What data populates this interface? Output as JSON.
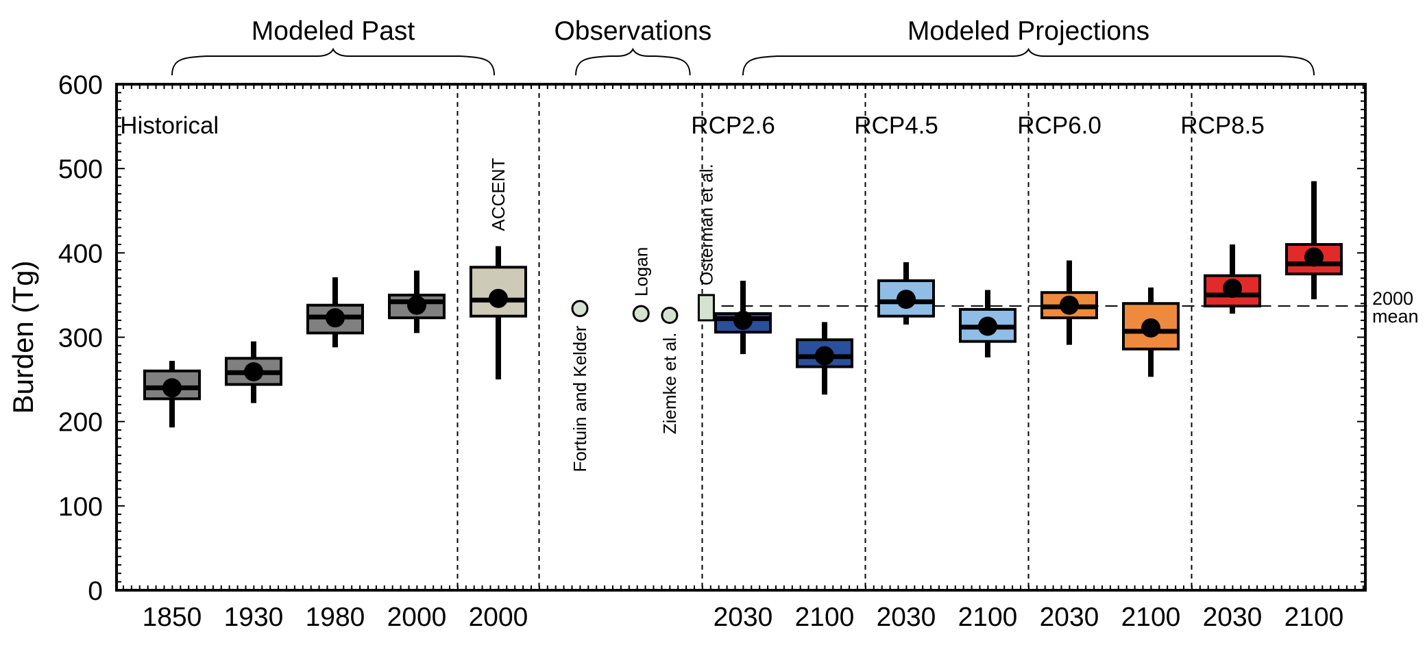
{
  "chart_data": {
    "type": "box",
    "ylabel": "Burden (Tg)",
    "ylim": [
      0,
      600
    ],
    "yticks": [
      0,
      100,
      200,
      300,
      400,
      500,
      600
    ],
    "grid": false,
    "brackets": [
      {
        "label": "Modeled Past",
        "x_from": 1,
        "x_to": 4.95
      },
      {
        "label": "Observations",
        "x_from": 5.95,
        "x_to": 7.35
      },
      {
        "label": "Modeled Projections",
        "x_from": 8.0,
        "x_to": 15.0
      }
    ],
    "groups": [
      {
        "label": "Historical",
        "x": 0.7
      },
      {
        "label": "RCP2.6",
        "x": 7.7
      },
      {
        "label": "RCP4.5",
        "x": 9.7
      },
      {
        "label": "RCP6.0",
        "x": 11.7
      },
      {
        "label": "RCP8.5",
        "x": 13.7
      }
    ],
    "separators": [
      4.5,
      5.5,
      7.5,
      9.5,
      11.5,
      13.5
    ],
    "reference_line": {
      "value": 337,
      "label_lines": [
        "2000",
        "mean"
      ]
    },
    "boxes": [
      {
        "x": 1,
        "label": "1850",
        "low": 193,
        "q1": 227,
        "median": 240,
        "q3": 260,
        "high": 272,
        "mean": 240,
        "color": "#808080"
      },
      {
        "x": 2,
        "label": "1930",
        "low": 222,
        "q1": 244,
        "median": 258,
        "q3": 275,
        "high": 295,
        "mean": 259,
        "color": "#808080"
      },
      {
        "x": 3,
        "label": "1980",
        "low": 288,
        "q1": 305,
        "median": 324,
        "q3": 338,
        "high": 371,
        "mean": 323,
        "color": "#808080"
      },
      {
        "x": 4,
        "label": "2000",
        "low": 305,
        "q1": 323,
        "median": 342,
        "q3": 350,
        "high": 379,
        "mean": 338,
        "color": "#808080"
      },
      {
        "x": 5,
        "label": "2000",
        "low": 250,
        "q1": 325,
        "median": 344,
        "q3": 383,
        "high": 408,
        "mean": 346,
        "color": "#cdcab8",
        "annotation": "ACCENT"
      },
      {
        "x": 8,
        "label": "2030",
        "low": 280,
        "q1": 306,
        "median": 322,
        "q3": 328,
        "high": 367,
        "mean": 320,
        "color": "#2a4f9c"
      },
      {
        "x": 9,
        "label": "2100",
        "low": 232,
        "q1": 265,
        "median": 277,
        "q3": 297,
        "high": 318,
        "mean": 278,
        "color": "#2a4f9c"
      },
      {
        "x": 10,
        "label": "2030",
        "low": 315,
        "q1": 325,
        "median": 342,
        "q3": 367,
        "high": 389,
        "mean": 345,
        "color": "#8fbde6"
      },
      {
        "x": 11,
        "label": "2100",
        "low": 276,
        "q1": 295,
        "median": 312,
        "q3": 333,
        "high": 356,
        "mean": 313,
        "color": "#8fbde6"
      },
      {
        "x": 12,
        "label": "2030",
        "low": 291,
        "q1": 323,
        "median": 336,
        "q3": 353,
        "high": 391,
        "mean": 338,
        "color": "#ee8a3d"
      },
      {
        "x": 13,
        "label": "2100",
        "low": 253,
        "q1": 286,
        "median": 307,
        "q3": 340,
        "high": 359,
        "mean": 311,
        "color": "#ee8a3d"
      },
      {
        "x": 14,
        "label": "2030",
        "low": 328,
        "q1": 337,
        "median": 350,
        "q3": 373,
        "high": 410,
        "mean": 358,
        "color": "#e32a2a"
      },
      {
        "x": 15,
        "label": "2100",
        "low": 345,
        "q1": 375,
        "median": 387,
        "q3": 410,
        "high": 485,
        "mean": 395,
        "color": "#e32a2a"
      }
    ],
    "observations": [
      {
        "label": "Fortuin and Kelder",
        "x": 6.0,
        "value": 334,
        "marker": "circle",
        "color": "#d4e3d0"
      },
      {
        "label": "Logan",
        "x": 6.75,
        "value": 328,
        "marker": "circle",
        "color": "#d4e3d0"
      },
      {
        "label": "Ziemke et al.",
        "x": 7.1,
        "value": 326,
        "marker": "circle",
        "color": "#d4e3d0"
      },
      {
        "label": "Osterman et al.",
        "x": 7.55,
        "q1": 320,
        "q3": 350,
        "marker": "box",
        "color": "#d4e3d0"
      }
    ]
  }
}
